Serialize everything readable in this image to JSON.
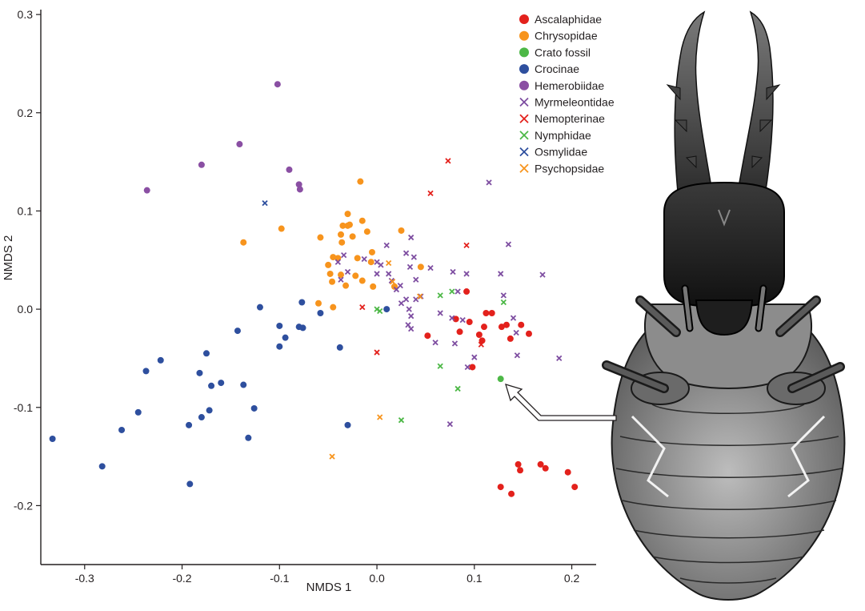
{
  "chart_data": {
    "type": "scatter",
    "xlabel": "NMDS 1",
    "ylabel": "NMDS 2",
    "xlim": [
      -0.345,
      0.225
    ],
    "ylim": [
      -0.26,
      0.305
    ],
    "xticks": [
      -0.3,
      -0.2,
      -0.1,
      0.0,
      0.1,
      0.2
    ],
    "xtick_labels": [
      "-0.3",
      "-0.2",
      "-0.1",
      "0.0",
      "0.1",
      "0.2"
    ],
    "yticks": [
      -0.2,
      -0.1,
      0.0,
      0.1,
      0.2,
      0.3
    ],
    "ytick_labels": [
      "-0.2",
      "-0.1",
      "0.0",
      "0.1",
      "0.2",
      "0.3"
    ],
    "grid": false,
    "legend_position": "top-right",
    "series": [
      {
        "name": "Ascalaphidae",
        "marker": "circle",
        "color": "#e3211c",
        "points": [
          [
            0.052,
            -0.027
          ],
          [
            0.081,
            -0.01
          ],
          [
            0.092,
            0.018
          ],
          [
            0.095,
            -0.013
          ],
          [
            0.098,
            -0.059
          ],
          [
            0.085,
            -0.023
          ],
          [
            0.105,
            -0.026
          ],
          [
            0.108,
            -0.032
          ],
          [
            0.11,
            -0.018
          ],
          [
            0.112,
            -0.004
          ],
          [
            0.118,
            -0.004
          ],
          [
            0.128,
            -0.018
          ],
          [
            0.133,
            -0.016
          ],
          [
            0.137,
            -0.03
          ],
          [
            0.148,
            -0.016
          ],
          [
            0.156,
            -0.025
          ],
          [
            0.145,
            -0.158
          ],
          [
            0.147,
            -0.164
          ],
          [
            0.127,
            -0.181
          ],
          [
            0.138,
            -0.188
          ],
          [
            0.168,
            -0.158
          ],
          [
            0.173,
            -0.162
          ],
          [
            0.196,
            -0.166
          ],
          [
            0.203,
            -0.181
          ]
        ]
      },
      {
        "name": "Chrysopidae",
        "marker": "circle",
        "color": "#f7941d",
        "points": [
          [
            -0.137,
            0.068
          ],
          [
            -0.098,
            0.082
          ],
          [
            -0.058,
            0.073
          ],
          [
            -0.05,
            0.045
          ],
          [
            -0.048,
            0.036
          ],
          [
            -0.046,
            0.028
          ],
          [
            -0.045,
            0.053
          ],
          [
            -0.04,
            0.052
          ],
          [
            -0.036,
            0.068
          ],
          [
            -0.035,
            0.085
          ],
          [
            -0.03,
            0.097
          ],
          [
            -0.028,
            0.086
          ],
          [
            -0.025,
            0.074
          ],
          [
            -0.02,
            0.052
          ],
          [
            -0.015,
            0.09
          ],
          [
            -0.01,
            0.079
          ],
          [
            -0.006,
            0.048
          ],
          [
            -0.005,
            0.058
          ],
          [
            -0.004,
            0.023
          ],
          [
            0.018,
            0.023
          ],
          [
            0.025,
            0.08
          ],
          [
            0.045,
            0.043
          ],
          [
            -0.022,
            0.034
          ],
          [
            -0.037,
            0.035
          ],
          [
            -0.032,
            0.024
          ],
          [
            -0.015,
            0.029
          ],
          [
            -0.06,
            0.006
          ],
          [
            -0.045,
            0.002
          ],
          [
            -0.03,
            0.085
          ],
          [
            -0.037,
            0.076
          ],
          [
            -0.017,
            0.13
          ]
        ]
      },
      {
        "name": "Crato fossil",
        "marker": "circle",
        "color": "#4db847",
        "points": [
          [
            0.127,
            -0.071
          ]
        ]
      },
      {
        "name": "Crocinae",
        "marker": "circle",
        "color": "#2e4f9e",
        "points": [
          [
            -0.333,
            -0.132
          ],
          [
            -0.282,
            -0.16
          ],
          [
            -0.262,
            -0.123
          ],
          [
            -0.245,
            -0.105
          ],
          [
            -0.237,
            -0.063
          ],
          [
            -0.222,
            -0.052
          ],
          [
            -0.193,
            -0.118
          ],
          [
            -0.192,
            -0.178
          ],
          [
            -0.182,
            -0.065
          ],
          [
            -0.18,
            -0.11
          ],
          [
            -0.175,
            -0.045
          ],
          [
            -0.172,
            -0.103
          ],
          [
            -0.17,
            -0.078
          ],
          [
            -0.16,
            -0.075
          ],
          [
            -0.143,
            -0.022
          ],
          [
            -0.137,
            -0.077
          ],
          [
            -0.132,
            -0.131
          ],
          [
            -0.126,
            -0.101
          ],
          [
            -0.12,
            0.002
          ],
          [
            -0.1,
            -0.017
          ],
          [
            -0.1,
            -0.038
          ],
          [
            -0.094,
            -0.029
          ],
          [
            -0.08,
            -0.018
          ],
          [
            -0.077,
            0.007
          ],
          [
            -0.076,
            -0.019
          ],
          [
            -0.058,
            -0.004
          ],
          [
            -0.038,
            -0.039
          ],
          [
            -0.03,
            -0.118
          ],
          [
            0.01,
            0.0
          ]
        ]
      },
      {
        "name": "Hemerobiidae",
        "marker": "circle",
        "color": "#8a4fa3",
        "points": [
          [
            -0.236,
            0.121
          ],
          [
            -0.18,
            0.147
          ],
          [
            -0.141,
            0.168
          ],
          [
            -0.102,
            0.229
          ],
          [
            -0.09,
            0.142
          ],
          [
            -0.08,
            0.127
          ],
          [
            -0.079,
            0.122
          ]
        ]
      },
      {
        "name": "Myrmeleontidae",
        "marker": "x",
        "color": "#7e4ea1",
        "points": [
          [
            -0.04,
            0.048
          ],
          [
            -0.037,
            0.03
          ],
          [
            -0.034,
            0.055
          ],
          [
            -0.03,
            0.038
          ],
          [
            -0.013,
            0.051
          ],
          [
            0.0,
            0.048
          ],
          [
            0.0,
            0.036
          ],
          [
            0.004,
            0.045
          ],
          [
            0.01,
            0.065
          ],
          [
            0.012,
            0.036
          ],
          [
            0.015,
            0.029
          ],
          [
            0.02,
            0.02
          ],
          [
            0.024,
            0.024
          ],
          [
            0.03,
            0.057
          ],
          [
            0.034,
            0.043
          ],
          [
            0.035,
            0.073
          ],
          [
            0.038,
            0.053
          ],
          [
            0.04,
            0.03
          ],
          [
            0.03,
            0.01
          ],
          [
            0.04,
            0.01
          ],
          [
            0.045,
            0.013
          ],
          [
            0.025,
            0.006
          ],
          [
            0.033,
            0.0
          ],
          [
            0.035,
            -0.007
          ],
          [
            0.035,
            -0.02
          ],
          [
            0.032,
            -0.016
          ],
          [
            0.055,
            0.042
          ],
          [
            0.06,
            -0.034
          ],
          [
            0.065,
            -0.004
          ],
          [
            0.077,
            -0.009
          ],
          [
            0.078,
            0.038
          ],
          [
            0.083,
            0.018
          ],
          [
            0.088,
            -0.011
          ],
          [
            0.092,
            0.036
          ],
          [
            0.08,
            -0.035
          ],
          [
            0.1,
            -0.049
          ],
          [
            0.115,
            0.129
          ],
          [
            0.127,
            0.036
          ],
          [
            0.13,
            0.014
          ],
          [
            0.135,
            0.066
          ],
          [
            0.14,
            -0.009
          ],
          [
            0.143,
            -0.024
          ],
          [
            0.144,
            -0.047
          ],
          [
            0.17,
            0.035
          ],
          [
            0.187,
            -0.05
          ],
          [
            0.075,
            -0.117
          ],
          [
            0.093,
            -0.059
          ]
        ]
      },
      {
        "name": "Nemopterinae",
        "marker": "x",
        "color": "#e3211c",
        "points": [
          [
            -0.015,
            0.002
          ],
          [
            0.0,
            -0.044
          ],
          [
            0.055,
            0.118
          ],
          [
            0.073,
            0.151
          ],
          [
            0.092,
            0.065
          ],
          [
            0.107,
            -0.036
          ]
        ]
      },
      {
        "name": "Nymphidae",
        "marker": "x",
        "color": "#4db847",
        "points": [
          [
            0.0,
            0.0
          ],
          [
            0.003,
            -0.002
          ],
          [
            0.025,
            -0.113
          ],
          [
            0.065,
            0.014
          ],
          [
            0.065,
            -0.058
          ],
          [
            0.077,
            0.018
          ],
          [
            0.083,
            -0.081
          ],
          [
            0.13,
            0.007
          ]
        ]
      },
      {
        "name": "Osmylidae",
        "marker": "x",
        "color": "#2e4f9e",
        "points": [
          [
            -0.115,
            0.108
          ]
        ]
      },
      {
        "name": "Psychopsidae",
        "marker": "x",
        "color": "#f7941d",
        "points": [
          [
            -0.046,
            -0.15
          ],
          [
            0.003,
            -0.11
          ],
          [
            0.012,
            0.047
          ],
          [
            0.016,
            0.028
          ],
          [
            0.044,
            0.013
          ]
        ]
      }
    ],
    "annotation": {
      "type": "arrow-to-point",
      "target_series": "Crato fossil",
      "image": "fossil-insect-larva-illustration"
    }
  }
}
